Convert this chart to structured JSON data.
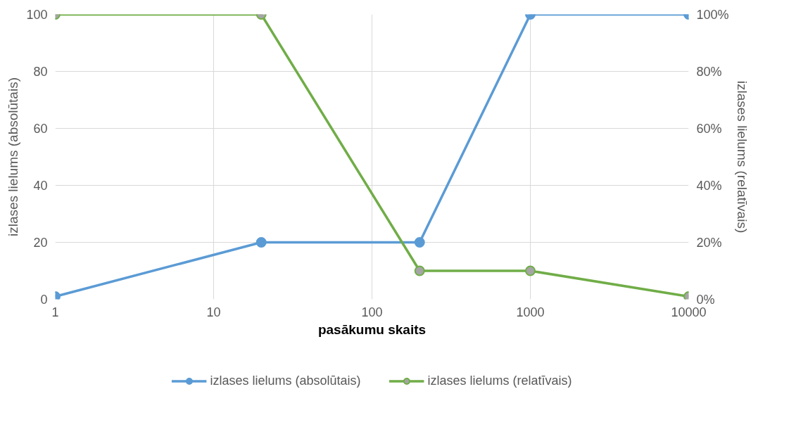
{
  "chart_data": {
    "type": "line",
    "xlabel": "pasākumu skaits",
    "ylabel": "izlases lielums (absolūtais)",
    "y2label": "izlases lielums (relatīvais)",
    "x": [
      1,
      20,
      200,
      1000,
      10000
    ],
    "series": [
      {
        "name": "izlases lielums (absolūtais)",
        "color": "#5b9bd5",
        "values": [
          1,
          20,
          20,
          100,
          100
        ]
      },
      {
        "name": "izlases lielums (relatīvais)",
        "color": "#70ad47",
        "values": [
          100,
          100,
          10,
          10,
          1
        ],
        "axis": "y2"
      }
    ],
    "log": "x",
    "xlim": [
      1,
      10000
    ],
    "xticks": [
      1,
      10,
      100,
      1000,
      10000
    ],
    "ylim": [
      0,
      100
    ],
    "yticks": [
      0,
      20,
      40,
      60,
      80,
      100
    ],
    "y2lim": [
      0,
      100
    ],
    "y2ticks": [
      {
        "value": 0,
        "label": "0%"
      },
      {
        "value": 20,
        "label": "20%"
      },
      {
        "value": 40,
        "label": "40%"
      },
      {
        "value": 60,
        "label": "60%"
      },
      {
        "value": 80,
        "label": "80%"
      },
      {
        "value": 100,
        "label": "100%"
      }
    ],
    "grid": true,
    "legend": "bottom",
    "marker": "circle",
    "line_style": "solid"
  }
}
